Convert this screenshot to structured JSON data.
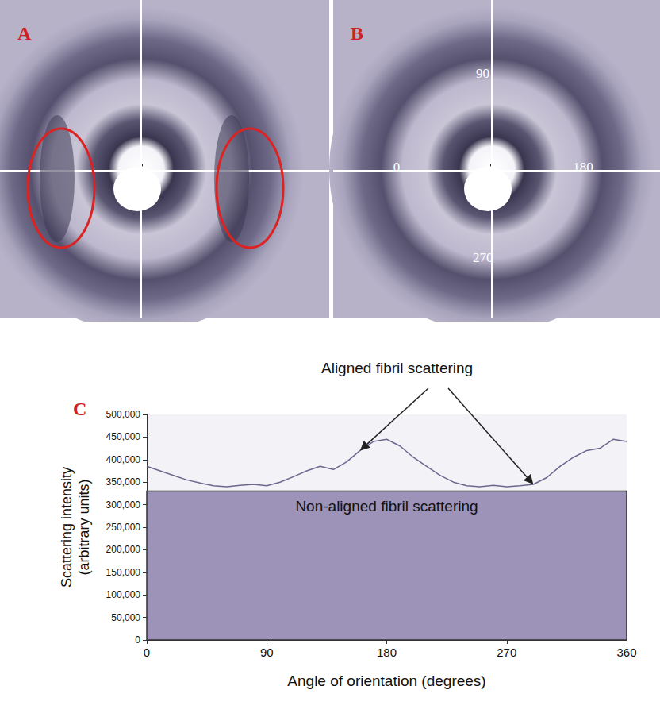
{
  "panels": {
    "A": {
      "label": "A"
    },
    "B": {
      "label": "B",
      "angle_labels": [
        90,
        0,
        180,
        270
      ]
    }
  },
  "chart_data": {
    "type": "line",
    "panel_label": "C",
    "title": "Aligned fibril scattering",
    "x_label": "Angle of orientation (degrees)",
    "y_label": [
      "Scattering intensity",
      "(arbitrary units)"
    ],
    "x": [
      0,
      10,
      20,
      30,
      40,
      50,
      60,
      70,
      80,
      90,
      100,
      110,
      120,
      130,
      140,
      150,
      160,
      170,
      180,
      190,
      200,
      210,
      220,
      230,
      240,
      250,
      260,
      270,
      280,
      290,
      300,
      310,
      320,
      330,
      340,
      350,
      360
    ],
    "values": [
      385000,
      375000,
      365000,
      355000,
      348000,
      342000,
      340000,
      343000,
      345000,
      342000,
      350000,
      362000,
      375000,
      385000,
      378000,
      395000,
      420000,
      440000,
      445000,
      430000,
      405000,
      385000,
      365000,
      350000,
      342000,
      340000,
      343000,
      340000,
      342000,
      345000,
      360000,
      385000,
      405000,
      420000,
      425000,
      445000,
      440000
    ],
    "color": "#6b6890",
    "xlim": [
      0,
      360
    ],
    "xticks": [
      0,
      90,
      180,
      270,
      360
    ],
    "ylim": [
      0,
      500000
    ],
    "yticks": [
      0,
      50000,
      100000,
      150000,
      200000,
      250000,
      300000,
      350000,
      400000,
      450000,
      500000
    ],
    "grid": false,
    "non_aligned": {
      "text": "Non-aligned fibril scattering",
      "level": 330000,
      "color": "#9d93b8"
    },
    "annotation": {
      "text": "Aligned fibril scattering",
      "points": [
        [
          160,
          420000
        ],
        [
          290,
          345000
        ]
      ]
    }
  }
}
